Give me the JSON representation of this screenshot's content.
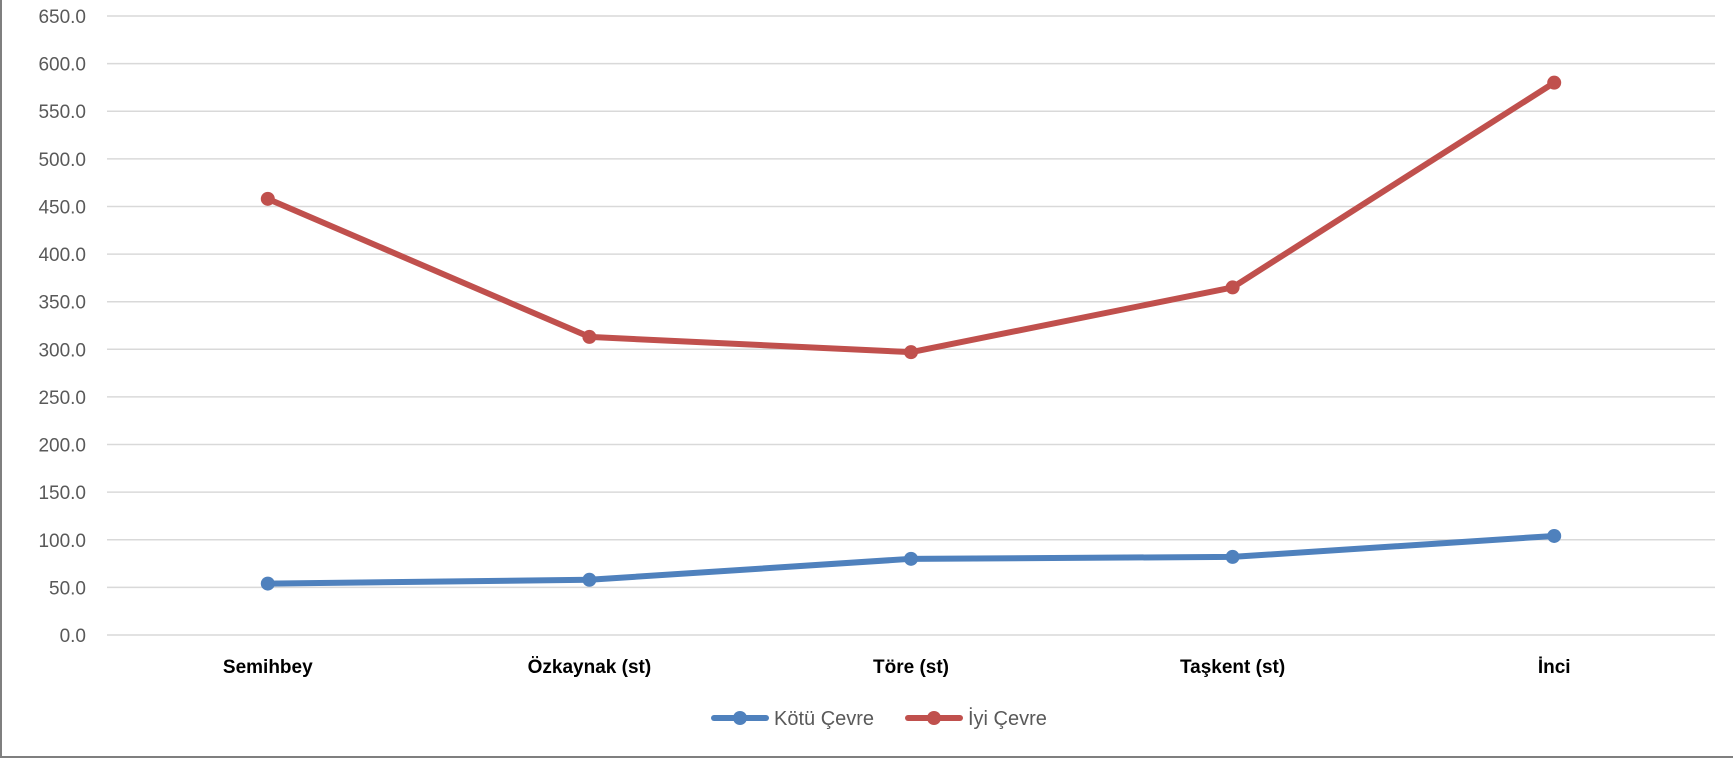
{
  "chart_data": {
    "type": "line",
    "categories": [
      "Semihbey",
      "Özkaynak (st)",
      "Töre (st)",
      "Taşkent (st)",
      "İnci"
    ],
    "series": [
      {
        "name": "Kötü Çevre",
        "values": [
          54,
          58,
          80,
          82,
          104
        ],
        "color": "#4f81bd"
      },
      {
        "name": "İyi Çevre",
        "values": [
          458,
          313,
          297,
          365,
          580
        ],
        "color": "#c0504d"
      }
    ],
    "ylim": [
      0,
      650
    ],
    "ytick_step": 50,
    "ytick_labels": [
      "0.0",
      "50.0",
      "100.0",
      "150.0",
      "200.0",
      "250.0",
      "300.0",
      "350.0",
      "400.0",
      "450.0",
      "500.0",
      "550.0",
      "600.0",
      "650.0"
    ],
    "title": "",
    "xlabel": "",
    "ylabel": "",
    "grid": true,
    "legend_position": "bottom",
    "colors": {
      "grid": "#d9d9d9",
      "axis_text": "#595959",
      "category_text": "#000000"
    }
  }
}
